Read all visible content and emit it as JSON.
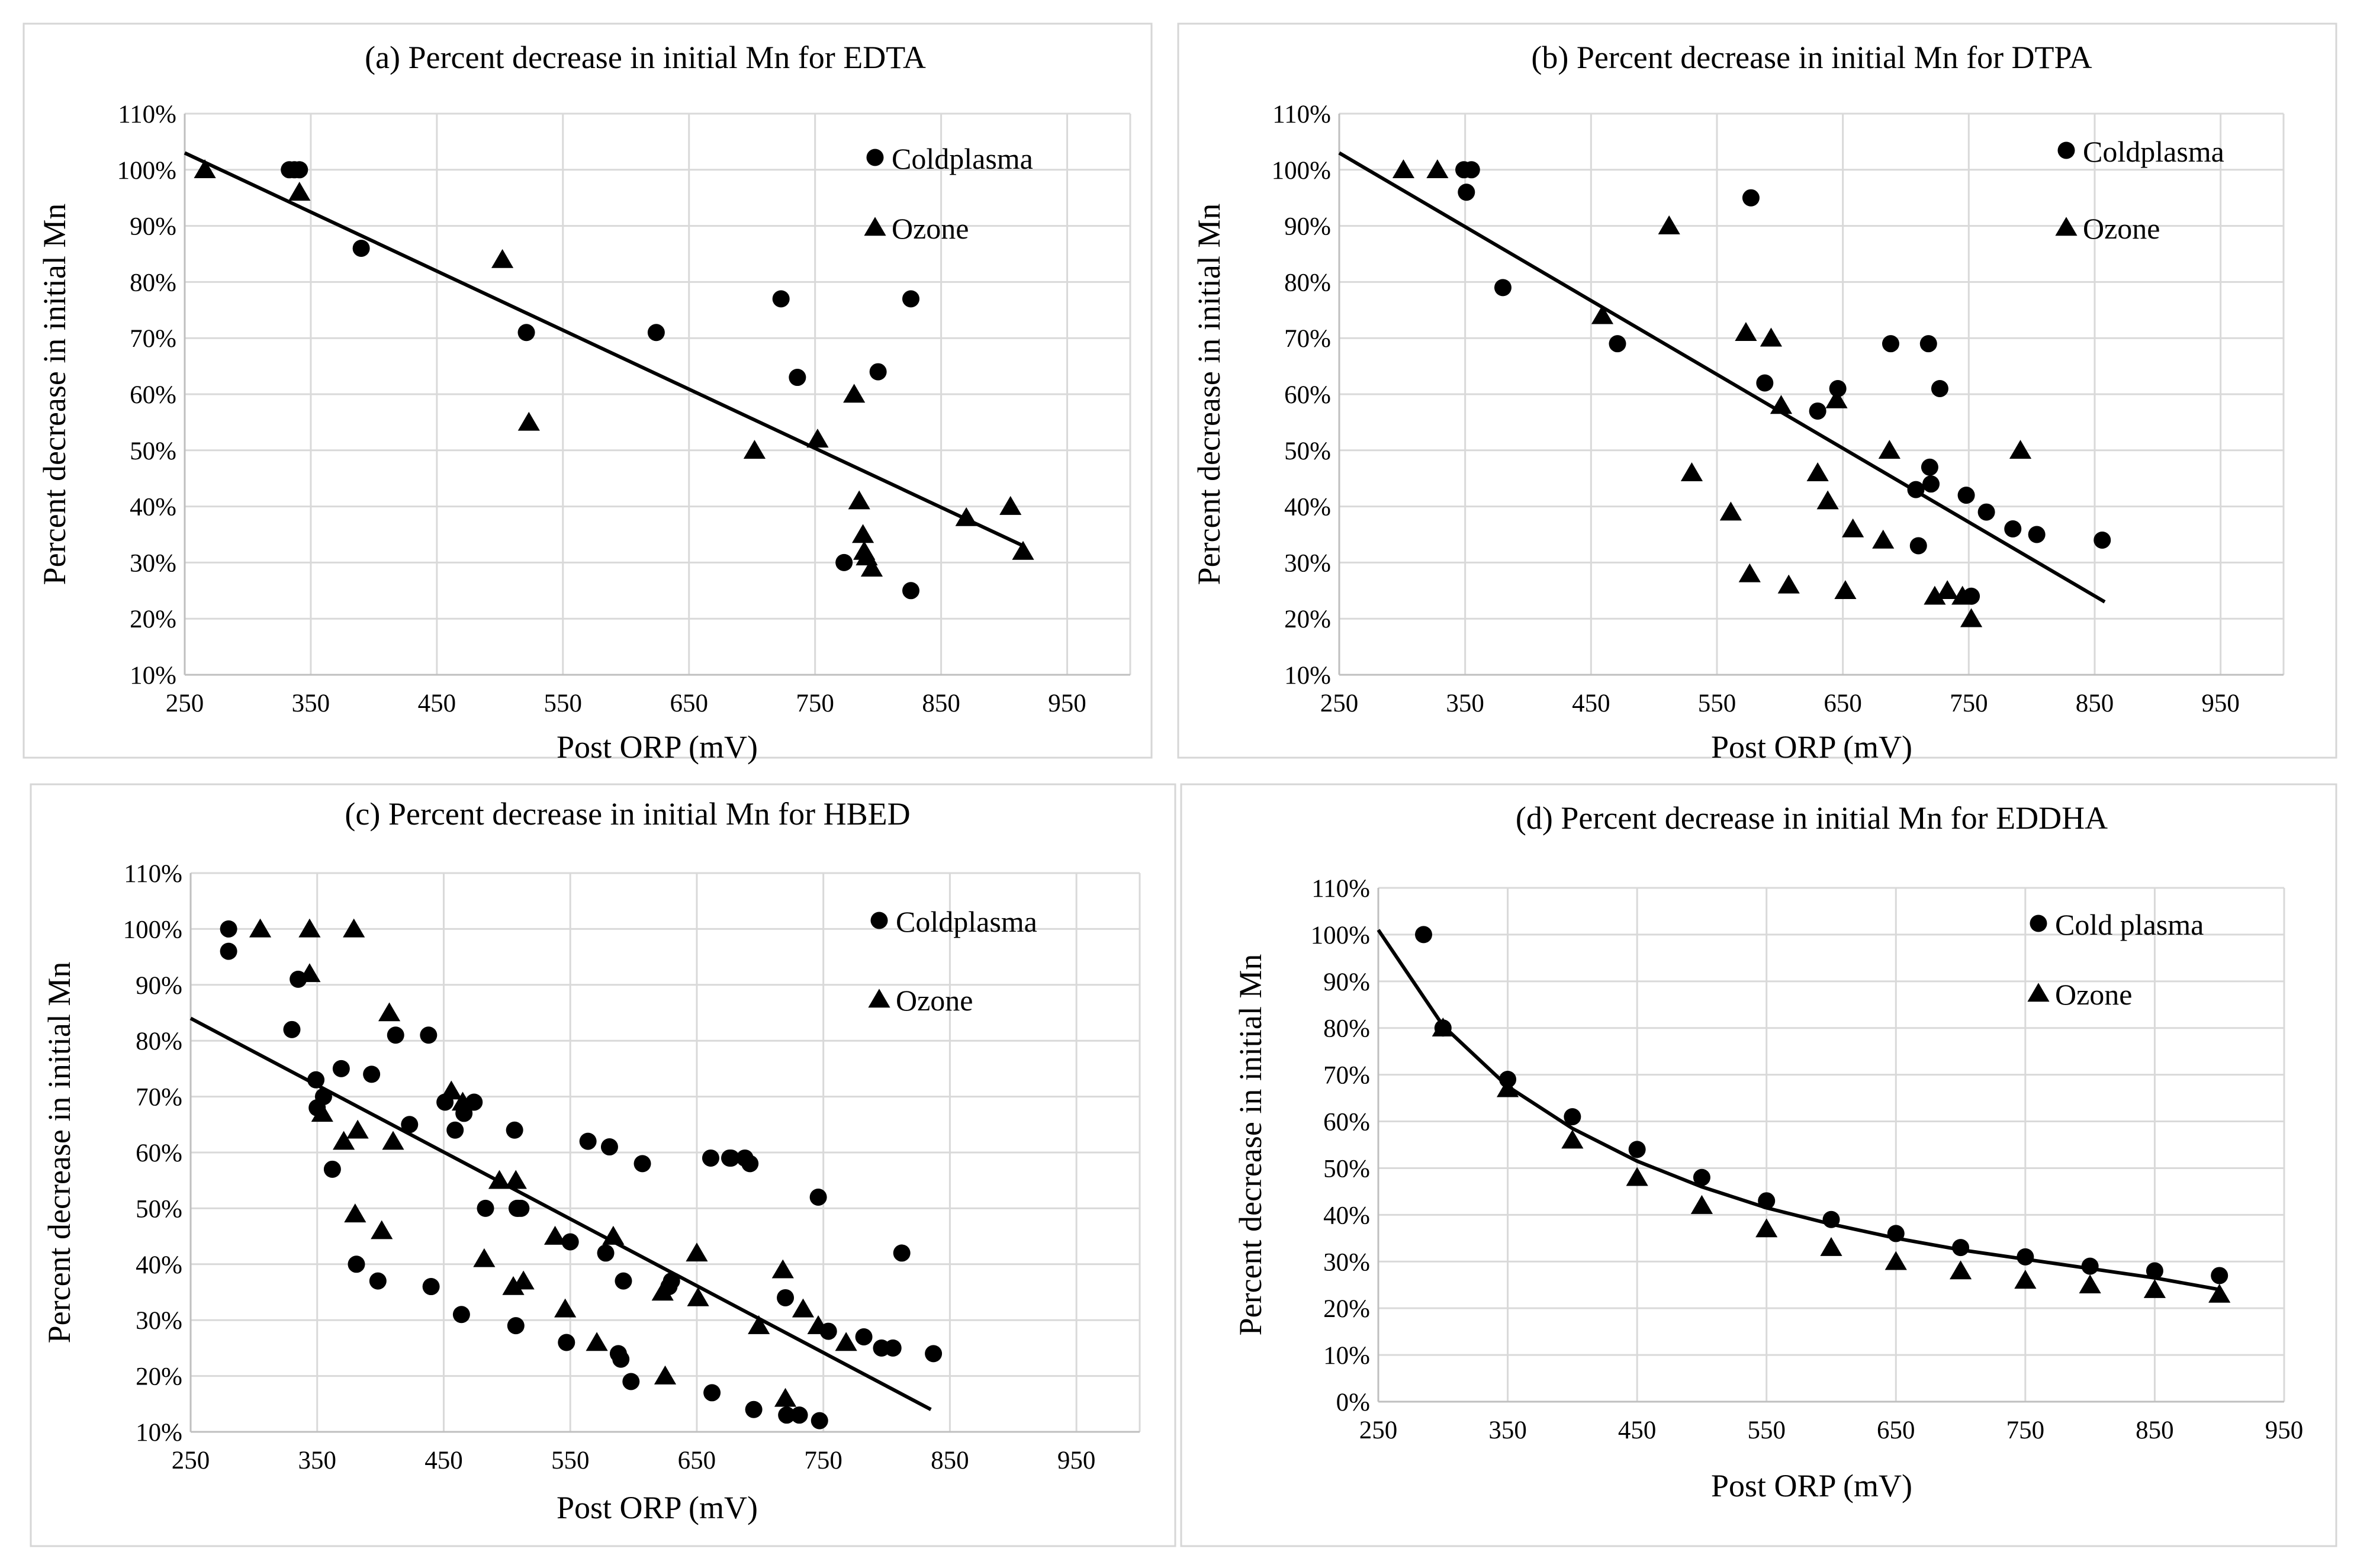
{
  "chart_data": [
    {
      "type": "scatter",
      "title": "(a) Percent decrease in initial Mn for EDTA",
      "xlabel": "Post ORP (mV)",
      "ylabel": "Percent decrease in initial Mn",
      "xlim": [
        250,
        1000
      ],
      "ylim": [
        10,
        110
      ],
      "x_ticks": [
        "250",
        "350",
        "450",
        "550",
        "650",
        "750",
        "850",
        "950"
      ],
      "y_ticks": [
        "10%",
        "20%",
        "30%",
        "40%",
        "50%",
        "60%",
        "70%",
        "80%",
        "90%",
        "100%",
        "110%"
      ],
      "legend": [
        "Coldplasma",
        "Ozone"
      ],
      "series": [
        {
          "name": "Coldplasma",
          "marker": "circle",
          "x": [
            333,
            337,
            341,
            390,
            521,
            624,
            723,
            736,
            773,
            800,
            826,
            826
          ],
          "y": [
            100,
            100,
            100,
            86,
            71,
            71,
            77,
            63,
            30,
            64,
            77,
            25
          ]
        },
        {
          "name": "Ozone",
          "marker": "triangle",
          "x": [
            266,
            341,
            502,
            523,
            702,
            752,
            781,
            785,
            788,
            789,
            791,
            795,
            870,
            905,
            915
          ],
          "y": [
            100,
            96,
            84,
            55,
            50,
            52,
            60,
            41,
            35,
            32,
            31,
            29,
            38,
            40,
            32
          ]
        }
      ],
      "trendline": {
        "kind": "linear",
        "points": [
          [
            250,
            103
          ],
          [
            915,
            33
          ]
        ]
      }
    },
    {
      "type": "scatter",
      "title": "(b) Percent decrease in initial Mn for DTPA",
      "xlabel": "Post ORP (mV)",
      "ylabel": "Percent decrease in initial Mn",
      "xlim": [
        250,
        1000
      ],
      "ylim": [
        10,
        110
      ],
      "x_ticks": [
        "250",
        "350",
        "450",
        "550",
        "650",
        "750",
        "850",
        "950"
      ],
      "y_ticks": [
        "10%",
        "20%",
        "30%",
        "40%",
        "50%",
        "60%",
        "70%",
        "80%",
        "90%",
        "100%",
        "110%"
      ],
      "legend": [
        "Coldplasma",
        "Ozone"
      ],
      "series": [
        {
          "name": "Coldplasma",
          "marker": "circle",
          "x": [
            349,
            351,
            355,
            380,
            471,
            577,
            588,
            630,
            646,
            688,
            708,
            710,
            718,
            719,
            720,
            727,
            748,
            752,
            764,
            785,
            804,
            856
          ],
          "y": [
            100,
            96,
            100,
            79,
            69,
            95,
            62,
            57,
            61,
            69,
            43,
            33,
            69,
            47,
            44,
            61,
            42,
            24,
            39,
            36,
            35,
            34
          ]
        },
        {
          "name": "Ozone",
          "marker": "triangle",
          "x": [
            301,
            328,
            459,
            512,
            530,
            561,
            573,
            576,
            593,
            601,
            607,
            630,
            638,
            645,
            652,
            658,
            682,
            687,
            723,
            733,
            745,
            752,
            791
          ],
          "y": [
            100,
            100,
            74,
            90,
            46,
            39,
            71,
            28,
            70,
            58,
            26,
            46,
            41,
            59,
            25,
            36,
            34,
            50,
            24,
            25,
            24,
            20,
            50
          ]
        }
      ],
      "trendline": {
        "kind": "linear",
        "points": [
          [
            250,
            103
          ],
          [
            858,
            23
          ]
        ]
      }
    },
    {
      "type": "scatter",
      "title": "(c) Percent decrease in initial Mn for HBED",
      "xlabel": "Post ORP (mV)",
      "ylabel": "Percent decrease in initial Mn",
      "xlim": [
        250,
        1000
      ],
      "ylim": [
        10,
        110
      ],
      "x_ticks": [
        "250",
        "350",
        "450",
        "550",
        "650",
        "750",
        "850",
        "950"
      ],
      "y_ticks": [
        "10%",
        "20%",
        "30%",
        "40%",
        "50%",
        "60%",
        "70%",
        "80%",
        "90%",
        "100%",
        "110%"
      ],
      "legend": [
        "Coldplasma",
        "Ozone"
      ],
      "series": [
        {
          "name": "Coldplasma",
          "marker": "circle",
          "x": [
            280,
            280,
            330,
            335,
            349,
            350,
            355,
            362,
            369,
            381,
            393,
            398,
            412,
            423,
            438,
            440,
            451,
            459,
            464,
            466,
            474,
            483,
            506,
            507,
            508,
            509,
            511,
            547,
            550,
            564,
            578,
            581,
            588,
            590,
            592,
            598,
            607,
            628,
            630,
            661,
            662,
            676,
            677,
            688,
            692,
            695,
            720,
            721,
            731,
            746,
            747,
            754,
            782,
            796,
            805,
            812,
            837
          ],
          "y": [
            100,
            96,
            82,
            91,
            73,
            68,
            70,
            57,
            75,
            40,
            74,
            37,
            81,
            65,
            81,
            36,
            69,
            64,
            31,
            67,
            69,
            50,
            64,
            29,
            50,
            50,
            50,
            26,
            44,
            62,
            42,
            61,
            24,
            23,
            37,
            19,
            58,
            36,
            37,
            59,
            17,
            59,
            59,
            59,
            58,
            14,
            34,
            13,
            13,
            52,
            12,
            28,
            27,
            25,
            25,
            42,
            24
          ]
        },
        {
          "name": "Ozone",
          "marker": "triangle",
          "x": [
            305,
            344,
            344,
            354,
            371,
            379,
            380,
            382,
            401,
            407,
            410,
            456,
            465,
            482,
            494,
            505,
            507,
            513,
            538,
            546,
            571,
            584,
            623,
            625,
            650,
            651,
            699,
            718,
            720,
            734,
            746,
            768
          ],
          "y": [
            100,
            100,
            92,
            67,
            62,
            100,
            49,
            64,
            46,
            85,
            62,
            71,
            69,
            41,
            55,
            36,
            55,
            37,
            45,
            32,
            26,
            45,
            35,
            20,
            42,
            34,
            29,
            39,
            16,
            32,
            29,
            26
          ]
        }
      ],
      "trendline": {
        "kind": "linear",
        "points": [
          [
            250,
            84
          ],
          [
            835,
            14
          ]
        ]
      }
    },
    {
      "type": "scatter",
      "title": "(d) Percent decrease in initial Mn for EDDHA",
      "xlabel": "Post ORP (mV)",
      "ylabel": "Percent decrease in initial Mn",
      "xlim": [
        250,
        950
      ],
      "ylim": [
        0,
        110
      ],
      "x_ticks": [
        "250",
        "350",
        "450",
        "550",
        "650",
        "750",
        "850",
        "950"
      ],
      "y_ticks": [
        "0%",
        "10%",
        "20%",
        "30%",
        "40%",
        "50%",
        "60%",
        "70%",
        "80%",
        "90%",
        "100%",
        "110%"
      ],
      "legend": [
        "Cold plasma",
        "Ozone"
      ],
      "series": [
        {
          "name": "Cold plasma",
          "marker": "circle",
          "x": [
            285,
            300,
            350,
            400,
            450,
            500,
            550,
            600,
            650,
            700,
            750,
            800,
            850,
            900
          ],
          "y": [
            100,
            80,
            69,
            61,
            54,
            48,
            43,
            39,
            36,
            33,
            31,
            29,
            28,
            27
          ]
        },
        {
          "name": "Ozone",
          "marker": "triangle",
          "x": [
            300,
            350,
            400,
            450,
            500,
            550,
            600,
            650,
            700,
            750,
            800,
            850,
            900
          ],
          "y": [
            80,
            67,
            56,
            48,
            42,
            37,
            33,
            30,
            28,
            26,
            25,
            24,
            23
          ]
        }
      ],
      "trendline": {
        "kind": "power",
        "points": [
          [
            250,
            101
          ],
          [
            300,
            80.5
          ],
          [
            350,
            67.5
          ],
          [
            400,
            58.5
          ],
          [
            450,
            51.5
          ],
          [
            500,
            46
          ],
          [
            550,
            41.5
          ],
          [
            600,
            38
          ],
          [
            650,
            35
          ],
          [
            700,
            32.5
          ],
          [
            750,
            30.5
          ],
          [
            800,
            28.5
          ],
          [
            850,
            26.5
          ],
          [
            900,
            24
          ]
        ]
      }
    }
  ]
}
